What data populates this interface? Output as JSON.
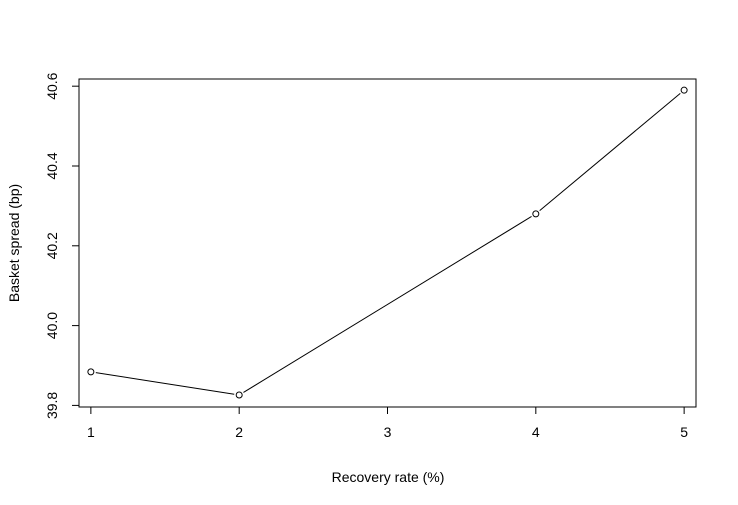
{
  "chart_data": {
    "type": "line",
    "title": "",
    "xlabel": "Recovery rate (%)",
    "ylabel": "Basket spread (bp)",
    "x": [
      1,
      2,
      4,
      5
    ],
    "series": [
      {
        "values": [
          39.884,
          39.826,
          40.28,
          40.59
        ]
      }
    ],
    "xlim": [
      0.92,
      5.08
    ],
    "ylim": [
      39.796,
      40.618
    ],
    "xticks": [
      1,
      2,
      3,
      4,
      5
    ],
    "xtick_labels": [
      "1",
      "2",
      "3",
      "4",
      "5"
    ],
    "yticks": [
      39.8,
      40.0,
      40.2,
      40.4,
      40.6
    ],
    "ytick_labels": [
      "39.8",
      "40.0",
      "40.2",
      "40.4",
      "40.6"
    ],
    "grid": false,
    "legend": "none",
    "line_color": "#000000",
    "marker": "open-circle"
  }
}
